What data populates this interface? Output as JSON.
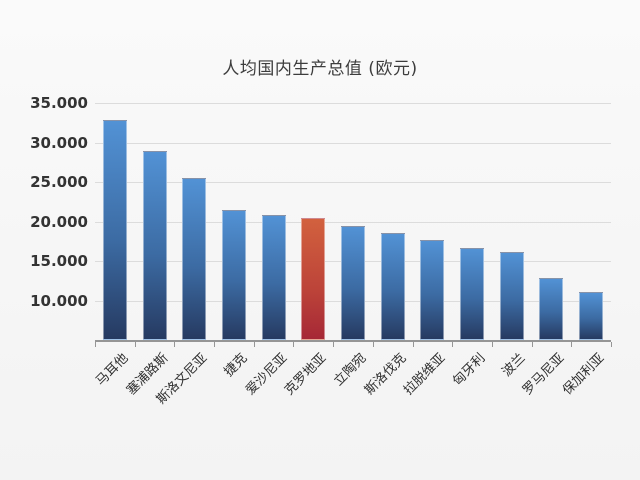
{
  "chart_data": {
    "type": "bar",
    "title": "人均国内生产总值 (欧元)",
    "categories": [
      "马耳他",
      "塞浦路斯",
      "斯洛文尼亚",
      "捷克",
      "爱沙尼亚",
      "克罗地亚",
      "立陶宛",
      "斯洛伐克",
      "拉脱维亚",
      "匈牙利",
      "波兰",
      "罗马尼亚",
      "保加利亚"
    ],
    "values": [
      32900,
      28900,
      25500,
      21400,
      20800,
      20500,
      19400,
      18500,
      17700,
      16600,
      16100,
      12800,
      11100
    ],
    "highlight_index": 5,
    "highlighted_category": "克罗地亚",
    "y_ticks": [
      35000,
      30000,
      25000,
      20000,
      15000,
      10000
    ],
    "y_tick_labels": [
      "35.000",
      "30.000",
      "25.000",
      "20.000",
      "15.000",
      "10.000"
    ],
    "ylim": [
      5000,
      35000
    ],
    "xlabel": "",
    "ylabel": "",
    "grid": true,
    "legend": false,
    "colors": {
      "bar_gradient_top": "#5292d5",
      "bar_gradient_bottom": "#263a61",
      "highlight_gradient_top": "#d2613e",
      "highlight_gradient_bottom": "#a62836",
      "background": "#f7f7f7",
      "gridline": "#dcdcdc",
      "axis_line": "#959595",
      "text": "#333333"
    }
  }
}
